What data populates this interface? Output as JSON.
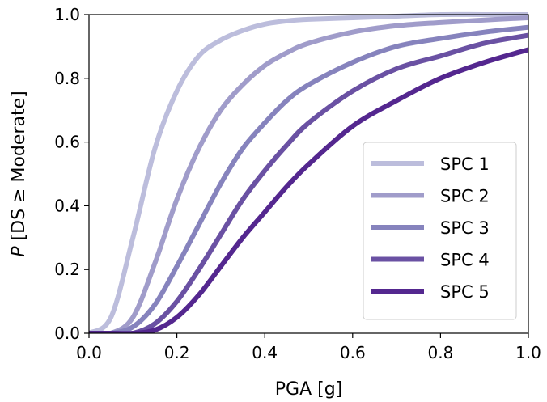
{
  "chart_data": {
    "type": "line",
    "xlabel": "PGA [g]",
    "ylabel_italic": "P",
    "ylabel_rest": " [DS ≥ Moderate]",
    "xlim": [
      0.0,
      1.0
    ],
    "ylim": [
      0.0,
      1.0
    ],
    "xticks": [
      "0.0",
      "0.2",
      "0.4",
      "0.6",
      "0.8",
      "1.0"
    ],
    "yticks": [
      "0.0",
      "0.2",
      "0.4",
      "0.6",
      "0.8",
      "1.0"
    ],
    "grid": false,
    "legend_position": "lower-right",
    "x": [
      0.0,
      0.05,
      0.1,
      0.15,
      0.2,
      0.25,
      0.3,
      0.35,
      0.4,
      0.45,
      0.5,
      0.6,
      0.7,
      0.8,
      0.9,
      1.0
    ],
    "series": [
      {
        "name": "SPC 1",
        "color": "#bcbddc",
        "values": [
          0.0,
          0.05,
          0.3,
          0.58,
          0.76,
          0.87,
          0.92,
          0.95,
          0.97,
          0.98,
          0.985,
          0.99,
          0.995,
          1.0,
          1.0,
          1.0
        ]
      },
      {
        "name": "SPC 2",
        "color": "#a09cca",
        "values": [
          0.0,
          0.0,
          0.05,
          0.22,
          0.42,
          0.58,
          0.7,
          0.78,
          0.84,
          0.88,
          0.91,
          0.945,
          0.965,
          0.975,
          0.983,
          0.99
        ]
      },
      {
        "name": "SPC 3",
        "color": "#8683bd",
        "values": [
          0.0,
          0.0,
          0.02,
          0.09,
          0.21,
          0.34,
          0.47,
          0.58,
          0.66,
          0.73,
          0.78,
          0.85,
          0.9,
          0.925,
          0.945,
          0.96
        ]
      },
      {
        "name": "SPC 4",
        "color": "#6a51a3",
        "values": [
          0.0,
          0.0,
          0.0,
          0.03,
          0.1,
          0.2,
          0.31,
          0.42,
          0.51,
          0.59,
          0.66,
          0.76,
          0.83,
          0.87,
          0.91,
          0.935
        ]
      },
      {
        "name": "SPC 5",
        "color": "#54278f",
        "values": [
          0.0,
          0.0,
          0.0,
          0.01,
          0.05,
          0.12,
          0.21,
          0.3,
          0.38,
          0.46,
          0.53,
          0.65,
          0.73,
          0.8,
          0.85,
          0.89
        ]
      }
    ]
  }
}
